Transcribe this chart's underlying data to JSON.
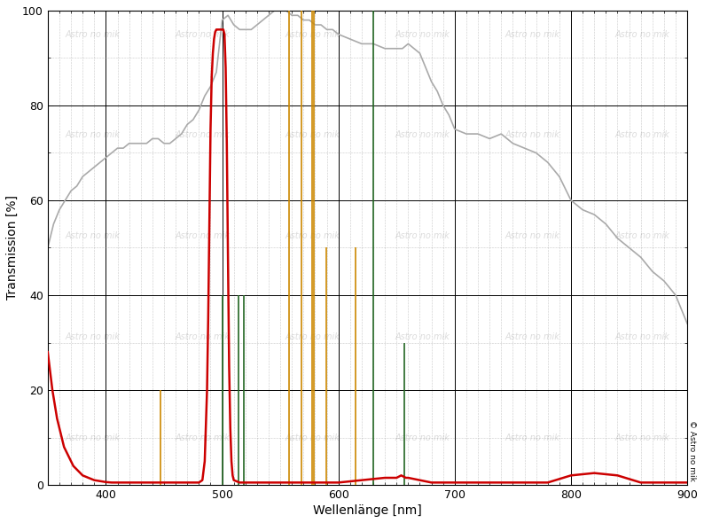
{
  "xlim": [
    350,
    900
  ],
  "ylim": [
    0,
    100
  ],
  "xlabel": "Wellenlänge [nm]",
  "ylabel": "Transmission [%]",
  "xticks": [
    400,
    500,
    600,
    700,
    800,
    900
  ],
  "yticks": [
    0,
    20,
    40,
    60,
    80,
    100
  ],
  "background_color": "#ffffff",
  "plot_bg_color": "#ffffff",
  "copyright_text": "© Astro no mik",
  "watermark_text": "Astro no mik",
  "emission_lines_orange": [
    {
      "wl": 447.1,
      "height": 20
    },
    {
      "wl": 557.7,
      "height": 100
    },
    {
      "wl": 568.0,
      "height": 100
    },
    {
      "wl": 577.0,
      "height": 100
    },
    {
      "wl": 579.1,
      "height": 100
    },
    {
      "wl": 589.3,
      "height": 50
    },
    {
      "wl": 615.0,
      "height": 50
    }
  ],
  "emission_lines_green": [
    {
      "wl": 500.7,
      "height": 40
    },
    {
      "wl": 514.0,
      "height": 40
    },
    {
      "wl": 519.0,
      "height": 40
    },
    {
      "wl": 630.0,
      "height": 100
    },
    {
      "wl": 656.3,
      "height": 30
    }
  ],
  "filter_color": "#cc0000",
  "qe_color": "#aaaaaa",
  "emission_orange_color": "#cc8800",
  "emission_green_color": "#226622",
  "filter_curve_x": [
    350,
    352,
    354,
    356,
    358,
    360,
    362,
    364,
    366,
    368,
    370,
    372,
    374,
    376,
    378,
    380,
    385,
    390,
    395,
    400,
    405,
    410,
    415,
    420,
    430,
    440,
    450,
    460,
    470,
    480,
    483,
    485,
    487,
    488,
    489,
    490,
    491,
    492,
    493,
    494,
    495,
    496,
    497,
    498,
    499,
    500,
    501,
    502,
    503,
    504,
    505,
    506,
    507,
    508,
    509,
    510,
    515,
    520,
    530,
    540,
    550,
    560,
    570,
    580,
    590,
    600,
    620,
    640,
    650,
    654,
    658,
    660,
    670,
    680,
    700,
    720,
    730,
    740,
    760,
    780,
    800,
    820,
    840,
    860,
    880,
    900
  ],
  "filter_curve_y": [
    28,
    24,
    20,
    17,
    14,
    12,
    10,
    8,
    7,
    6,
    5,
    4,
    3.5,
    3,
    2.5,
    2,
    1.5,
    1,
    0.8,
    0.6,
    0.5,
    0.5,
    0.5,
    0.5,
    0.5,
    0.5,
    0.5,
    0.5,
    0.5,
    0.5,
    1,
    5,
    20,
    35,
    55,
    75,
    86,
    91,
    94,
    95.5,
    96,
    96,
    96,
    96,
    96,
    96,
    96,
    95,
    88,
    72,
    48,
    25,
    12,
    5,
    2,
    1,
    0.5,
    0.5,
    0.5,
    0.5,
    0.5,
    0.5,
    0.5,
    0.5,
    0.5,
    0.5,
    1,
    1.5,
    1.5,
    2,
    1.5,
    1.5,
    1,
    0.5,
    0.5,
    0.5,
    0.5,
    0.5,
    0.5,
    0.5,
    2,
    2.5,
    2,
    0.5,
    0.5,
    0.5
  ],
  "qe_curve_x": [
    350,
    355,
    360,
    365,
    370,
    375,
    380,
    385,
    390,
    395,
    400,
    405,
    410,
    415,
    420,
    425,
    430,
    435,
    440,
    445,
    450,
    455,
    460,
    465,
    470,
    475,
    480,
    485,
    490,
    495,
    500,
    505,
    510,
    515,
    520,
    525,
    530,
    535,
    540,
    545,
    550,
    555,
    560,
    565,
    570,
    575,
    580,
    585,
    590,
    595,
    600,
    610,
    620,
    630,
    640,
    650,
    655,
    660,
    665,
    670,
    675,
    680,
    685,
    690,
    695,
    700,
    710,
    720,
    730,
    740,
    750,
    760,
    770,
    780,
    790,
    800,
    810,
    820,
    830,
    840,
    850,
    860,
    870,
    880,
    890,
    900
  ],
  "qe_curve_y": [
    50,
    55,
    58,
    60,
    62,
    63,
    65,
    66,
    67,
    68,
    69,
    70,
    71,
    71,
    72,
    72,
    72,
    72,
    73,
    73,
    72,
    72,
    73,
    74,
    76,
    77,
    79,
    82,
    84,
    87,
    98,
    99,
    97,
    96,
    96,
    96,
    97,
    98,
    99,
    100,
    100,
    100,
    99,
    99,
    98,
    98,
    97,
    97,
    96,
    96,
    95,
    94,
    93,
    93,
    92,
    92,
    92,
    93,
    92,
    91,
    88,
    85,
    83,
    80,
    78,
    75,
    74,
    74,
    73,
    74,
    72,
    71,
    70,
    68,
    65,
    60,
    58,
    57,
    55,
    52,
    50,
    48,
    45,
    43,
    40,
    34
  ]
}
